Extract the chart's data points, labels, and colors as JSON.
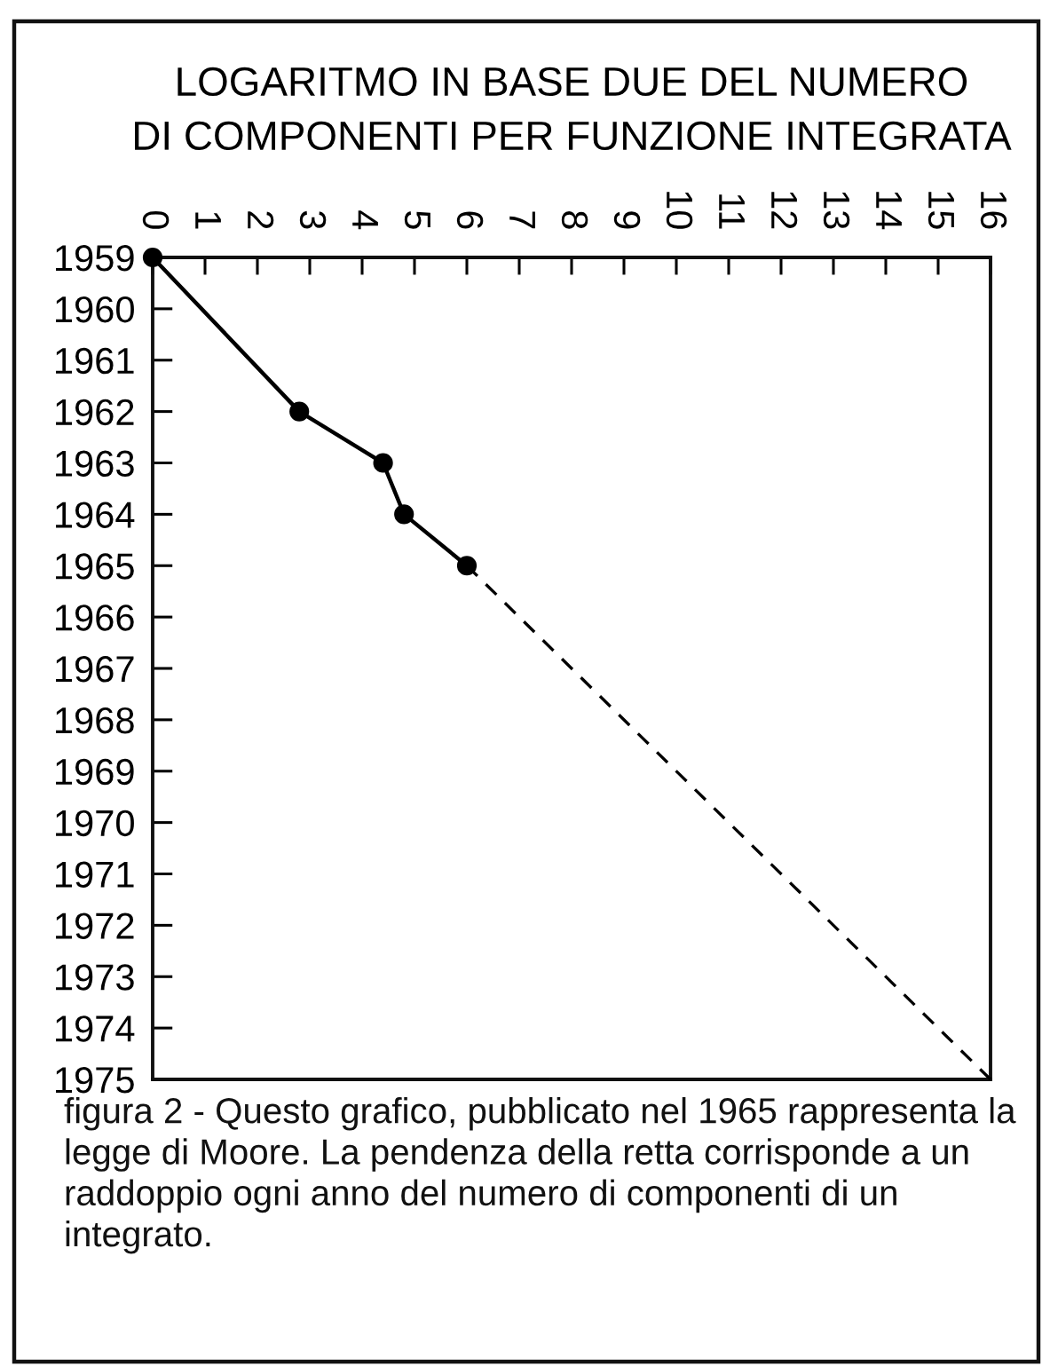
{
  "chart_data": {
    "type": "line",
    "xlabel": "LOGARITMO IN BASE DUE DEL NUMERO\nDI COMPONENTI PER FUNZIONE INTEGRATA",
    "series": [
      {
        "x": [
          0,
          2.8,
          4.4,
          4.8,
          6
        ],
        "values": [
          1959,
          1962,
          1963,
          1964,
          1965
        ],
        "color": "#000000",
        "marker": "circle",
        "line_style": "solid"
      },
      {
        "x": [
          6,
          16
        ],
        "values": [
          1965,
          1975
        ],
        "color": "#000000",
        "marker": "none",
        "line_style": "dashed"
      }
    ],
    "xlim": [
      0,
      16
    ],
    "xticks": [
      0,
      1,
      2,
      3,
      4,
      5,
      6,
      7,
      8,
      9,
      10,
      11,
      12,
      13,
      14,
      15,
      16
    ],
    "ylim": [
      1975,
      1959
    ],
    "yticks": [
      1959,
      1960,
      1961,
      1962,
      1963,
      1964,
      1965,
      1966,
      1967,
      1968,
      1969,
      1970,
      1971,
      1972,
      1973,
      1974,
      1975
    ],
    "annotations": [
      "figura 2 - Questo grafico, pubblicato nel 1965 rappresenta la legge di Moore. La pendenza della retta corrisponde a un raddoppio ogni anno del numero di componenti di un integrato."
    ]
  }
}
